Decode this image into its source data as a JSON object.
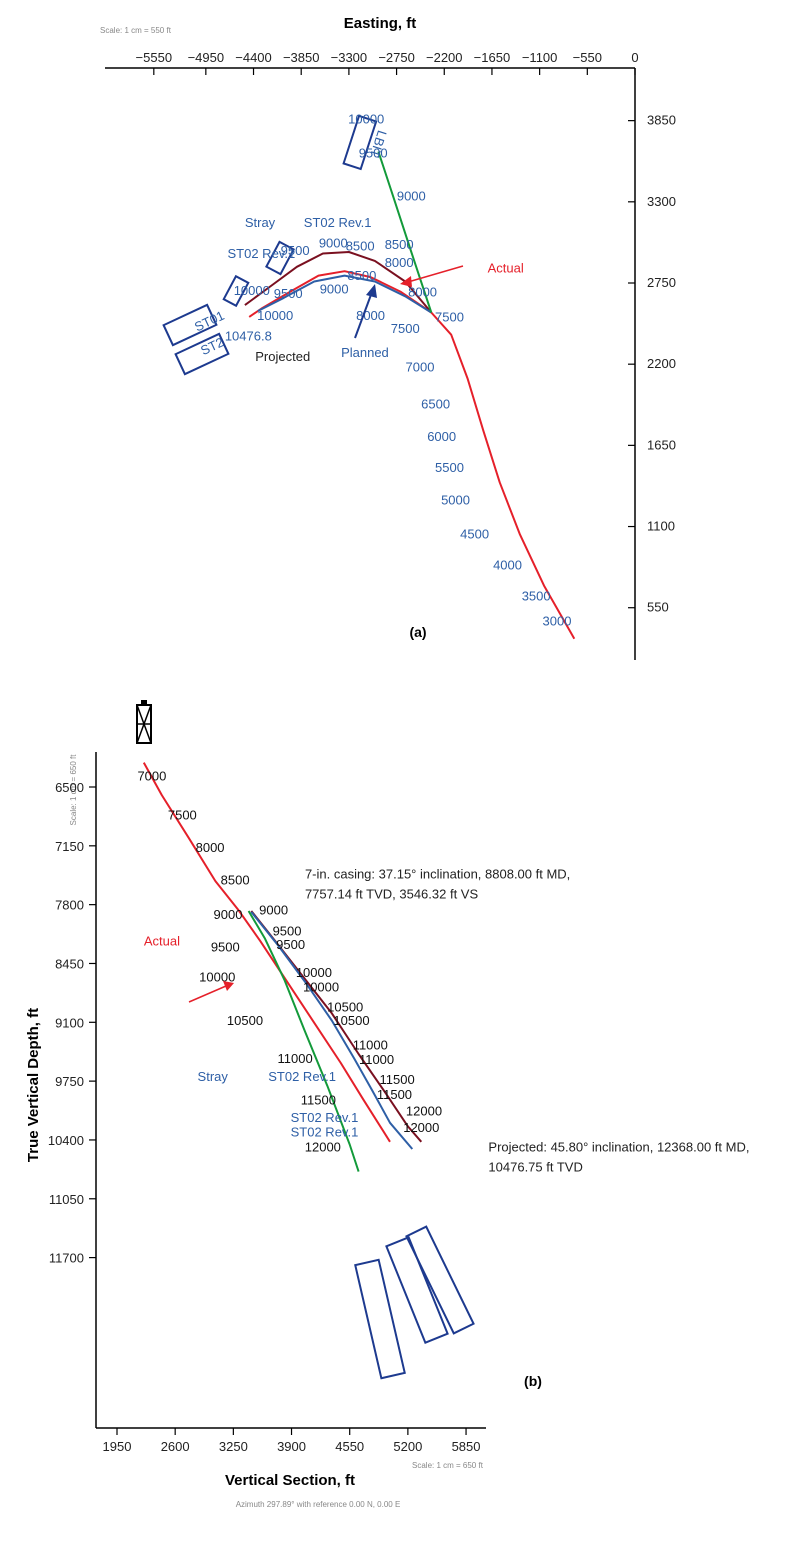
{
  "chart_data": [
    {
      "type": "line",
      "panel_label": "(a)",
      "scale_note": "Scale: 1 cm = 550 ft",
      "xlabel": "Easting, ft",
      "xticks": [
        -5550,
        -4950,
        -4400,
        -3850,
        -3300,
        -2750,
        -2200,
        -1650,
        -1100,
        -550,
        0
      ],
      "yticks": [
        550,
        1100,
        1650,
        2200,
        2750,
        3300,
        3850
      ],
      "series": [
        {
          "name": "Actual",
          "color": "#e5202a",
          "points": [
            [
              -700,
              340
            ],
            [
              -1050,
              700
            ],
            [
              -1330,
              1050
            ],
            [
              -1560,
              1400
            ],
            [
              -1750,
              1750
            ],
            [
              -1930,
              2100
            ],
            [
              -2120,
              2400
            ],
            [
              -2350,
              2550
            ],
            [
              -2700,
              2690
            ],
            [
              -3050,
              2790
            ],
            [
              -3350,
              2830
            ],
            [
              -3650,
              2800
            ],
            [
              -3950,
              2700
            ],
            [
              -4300,
              2580
            ],
            [
              -4450,
              2520
            ]
          ]
        },
        {
          "name": "Projected",
          "color": "#7a1020",
          "points": [
            [
              -2350,
              2550
            ],
            [
              -2650,
              2760
            ],
            [
              -3000,
              2900
            ],
            [
              -3300,
              2960
            ],
            [
              -3600,
              2950
            ],
            [
              -3900,
              2860
            ],
            [
              -4200,
              2730
            ],
            [
              -4500,
              2600
            ]
          ]
        },
        {
          "name": "Planned",
          "color": "#2e5fa6",
          "points": [
            [
              -2350,
              2550
            ],
            [
              -2650,
              2660
            ],
            [
              -3000,
              2760
            ],
            [
              -3350,
              2800
            ],
            [
              -3700,
              2760
            ],
            [
              -4050,
              2650
            ],
            [
              -4350,
              2560
            ]
          ]
        },
        {
          "name": "Stray",
          "color": "#139a3a",
          "points": [
            [
              -2350,
              2550
            ],
            [
              -2580,
              2960
            ],
            [
              -2780,
              3320
            ],
            [
              -2960,
              3640
            ]
          ]
        }
      ],
      "md_labels": [
        {
          "text": "3000",
          "x": -900,
          "y": 430
        },
        {
          "text": "3500",
          "x": -1140,
          "y": 600
        },
        {
          "text": "4000",
          "x": -1470,
          "y": 810
        },
        {
          "text": "4500",
          "x": -1850,
          "y": 1020
        },
        {
          "text": "5000",
          "x": -2070,
          "y": 1250
        },
        {
          "text": "5500",
          "x": -2140,
          "y": 1470
        },
        {
          "text": "6000",
          "x": -2230,
          "y": 1680
        },
        {
          "text": "6500",
          "x": -2300,
          "y": 1900
        },
        {
          "text": "7000",
          "x": -2480,
          "y": 2150
        },
        {
          "text": "7500",
          "x": -2140,
          "y": 2490
        },
        {
          "text": "7500",
          "x": -2650,
          "y": 2410
        },
        {
          "text": "8000",
          "x": -2450,
          "y": 2660
        },
        {
          "text": "8000",
          "x": -2720,
          "y": 2860
        },
        {
          "text": "8000",
          "x": -3050,
          "y": 2500
        },
        {
          "text": "8500",
          "x": -2720,
          "y": 2980
        },
        {
          "text": "8500",
          "x": -3170,
          "y": 2970
        },
        {
          "text": "8500",
          "x": -3150,
          "y": 2770
        },
        {
          "text": "9000",
          "x": -2580,
          "y": 3310
        },
        {
          "text": "9000",
          "x": -3480,
          "y": 2990
        },
        {
          "text": "9000",
          "x": -3470,
          "y": 2680
        },
        {
          "text": "9500",
          "x": -3020,
          "y": 3600
        },
        {
          "text": "9500",
          "x": -3920,
          "y": 2940
        },
        {
          "text": "9500",
          "x": -4000,
          "y": 2650
        },
        {
          "text": "10000",
          "x": -3100,
          "y": 3830
        },
        {
          "text": "10000",
          "x": -4420,
          "y": 2670
        },
        {
          "text": "10000",
          "x": -4150,
          "y": 2500
        },
        {
          "text": "10476.8",
          "x": -4460,
          "y": 2360
        }
      ],
      "annotations": [
        {
          "text": "Stray",
          "x": -4500,
          "y": 3130,
          "color": "#2e5fa6"
        },
        {
          "text": "ST02 Rev.1",
          "x": -3820,
          "y": 3130,
          "color": "#2e5fa6"
        },
        {
          "text": "ST02 Rev.1",
          "x": -4700,
          "y": 2920,
          "color": "#2e5fa6"
        },
        {
          "text": "ST01",
          "x": -5050,
          "y": 2420,
          "color": "#2e5fa6"
        },
        {
          "text": "ST2",
          "x": -4980,
          "y": 2260,
          "color": "#2e5fa6"
        },
        {
          "text": "Projected",
          "x": -4380,
          "y": 2220,
          "color": "#222222"
        },
        {
          "text": "Planned",
          "x": -3390,
          "y": 2250,
          "color": "#2e5fa6"
        },
        {
          "text": "Actual",
          "x": -1700,
          "y": 2820,
          "color": "#e5202a"
        },
        {
          "text": "LBIT",
          "x": -2960,
          "y": 3790,
          "color": "#2e5fa6"
        }
      ]
    },
    {
      "type": "line",
      "panel_label": "(b)",
      "scale_note_y": "Scale: 1 cm = 650 ft",
      "scale_note_x": "Scale: 1 cm = 650 ft",
      "xlabel": "Vertical Section, ft",
      "ylabel": "True Vertical Depth, ft",
      "azimuth_note": "Azimuth 297.89° with reference 0.00 N, 0.00 E",
      "xticks": [
        1950,
        2600,
        3250,
        3900,
        4550,
        5200,
        5850
      ],
      "yticks": [
        6500,
        7150,
        7800,
        8450,
        9100,
        9750,
        10400,
        11050,
        11700
      ],
      "series": [
        {
          "name": "Actual",
          "color": "#e5202a",
          "points": [
            [
              2250,
              6230
            ],
            [
              2450,
              6590
            ],
            [
              2750,
              7060
            ],
            [
              3050,
              7540
            ],
            [
              3300,
              7850
            ],
            [
              3550,
              8200
            ],
            [
              3850,
              8650
            ],
            [
              4150,
              9100
            ],
            [
              4450,
              9550
            ],
            [
              4700,
              9950
            ],
            [
              5000,
              10420
            ]
          ]
        },
        {
          "name": "Projected",
          "color": "#7a1020",
          "points": [
            [
              3450,
              7870
            ],
            [
              3700,
              8180
            ],
            [
              4000,
              8560
            ],
            [
              4350,
              9000
            ],
            [
              4650,
              9450
            ],
            [
              4950,
              9880
            ],
            [
              5200,
              10250
            ],
            [
              5350,
              10420
            ]
          ]
        },
        {
          "name": "Planned",
          "color": "#2e5fa6",
          "points": [
            [
              3450,
              7880
            ],
            [
              3750,
              8250
            ],
            [
              4050,
              8650
            ],
            [
              4350,
              9080
            ],
            [
              4600,
              9500
            ],
            [
              4800,
              9850
            ],
            [
              5000,
              10210
            ],
            [
              5250,
              10500
            ]
          ]
        },
        {
          "name": "Stray",
          "color": "#139a3a",
          "points": [
            [
              3420,
              7870
            ],
            [
              3600,
              8170
            ],
            [
              3820,
              8630
            ],
            [
              4050,
              9200
            ],
            [
              4300,
              9800
            ],
            [
              4550,
              10450
            ],
            [
              4650,
              10750
            ]
          ]
        }
      ],
      "md_labels": [
        {
          "text": "7000",
          "x": 2340,
          "y": 6430
        },
        {
          "text": "7500",
          "x": 2680,
          "y": 6860
        },
        {
          "text": "8000",
          "x": 2990,
          "y": 7220
        },
        {
          "text": "8500",
          "x": 3270,
          "y": 7580
        },
        {
          "text": "9000",
          "x": 3190,
          "y": 7960
        },
        {
          "text": "9000",
          "x": 3700,
          "y": 7910
        },
        {
          "text": "9500",
          "x": 3160,
          "y": 8320
        },
        {
          "text": "9500",
          "x": 3850,
          "y": 8140
        },
        {
          "text": "9500",
          "x": 3890,
          "y": 8290
        },
        {
          "text": "10000",
          "x": 3070,
          "y": 8650
        },
        {
          "text": "10000",
          "x": 4150,
          "y": 8600
        },
        {
          "text": "10000",
          "x": 4230,
          "y": 8760
        },
        {
          "text": "10500",
          "x": 3380,
          "y": 9130
        },
        {
          "text": "10500",
          "x": 4500,
          "y": 8980
        },
        {
          "text": "10500",
          "x": 4570,
          "y": 9130
        },
        {
          "text": "11000",
          "x": 3940,
          "y": 9550
        },
        {
          "text": "11000",
          "x": 4780,
          "y": 9400
        },
        {
          "text": "11000",
          "x": 4850,
          "y": 9560
        },
        {
          "text": "11500",
          "x": 4200,
          "y": 10010
        },
        {
          "text": "11500",
          "x": 5080,
          "y": 9780
        },
        {
          "text": "11500",
          "x": 5050,
          "y": 9950
        },
        {
          "text": "12000",
          "x": 4250,
          "y": 10530
        },
        {
          "text": "12000",
          "x": 5380,
          "y": 10130
        },
        {
          "text": "12000",
          "x": 5350,
          "y": 10310
        }
      ],
      "annotations": [
        {
          "text": "7-in. casing: 37.15° inclination, 8808.00 ft MD,",
          "x": 4050,
          "y": 7510,
          "color": "#222222"
        },
        {
          "text": "7757.14 ft TVD, 3546.32 ft VS",
          "x": 4050,
          "y": 7730,
          "color": "#222222"
        },
        {
          "text": "Projected: 45.80° inclination, 12368.00 ft MD,",
          "x": 6100,
          "y": 10530,
          "color": "#222222"
        },
        {
          "text": "10476.75 ft TVD",
          "x": 6100,
          "y": 10750,
          "color": "#222222"
        },
        {
          "text": "Actual",
          "x": 2250,
          "y": 8250,
          "color": "#e5202a"
        },
        {
          "text": "Stray",
          "x": 2850,
          "y": 9750,
          "color": "#2e5fa6"
        },
        {
          "text": "ST02 Rev.1",
          "x": 3640,
          "y": 9750,
          "color": "#2e5fa6"
        },
        {
          "text": "ST02 Rev.1",
          "x": 3890,
          "y": 10200,
          "color": "#2e5fa6"
        },
        {
          "text": "ST02 Rev.1",
          "x": 3890,
          "y": 10360,
          "color": "#2e5fa6"
        }
      ]
    }
  ]
}
